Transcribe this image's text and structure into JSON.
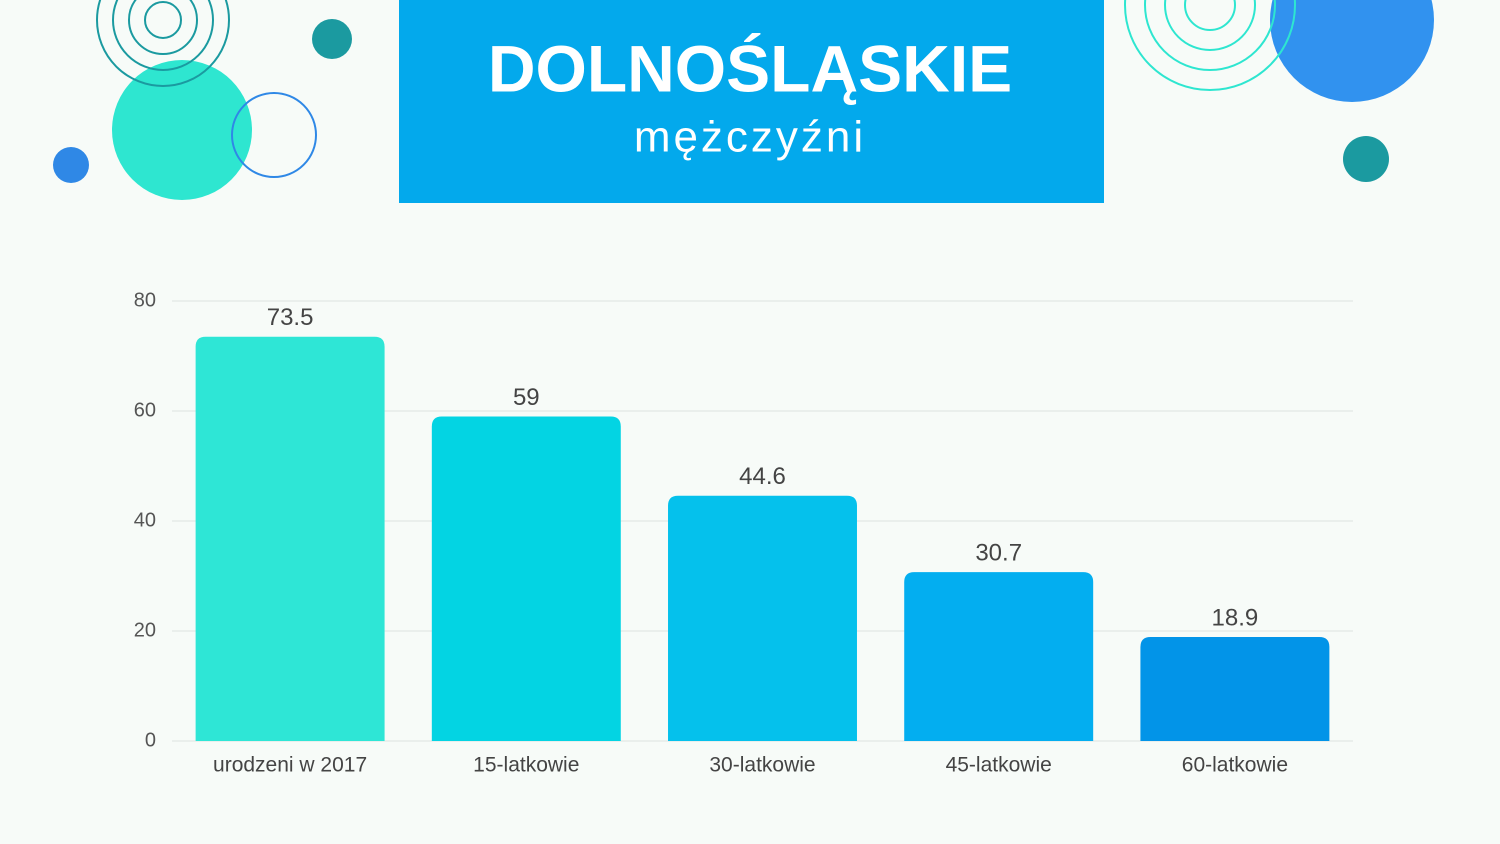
{
  "chart_data": {
    "type": "bar",
    "title": "DOLNOŚLĄSKIE",
    "subtitle": "mężczyźni",
    "categories": [
      "urodzeni w 2017",
      "15-latkowie",
      "30-latkowie",
      "45-latkowie",
      "60-latkowie"
    ],
    "values": [
      73.5,
      59,
      44.6,
      30.7,
      18.9
    ],
    "colors": [
      "#2ee6d6",
      "#03d4e3",
      "#05c1ec",
      "#03aef0",
      "#0294e8"
    ],
    "ylim": [
      0,
      80
    ],
    "yticks": [
      0,
      20,
      40,
      60,
      80
    ],
    "grid": true
  }
}
